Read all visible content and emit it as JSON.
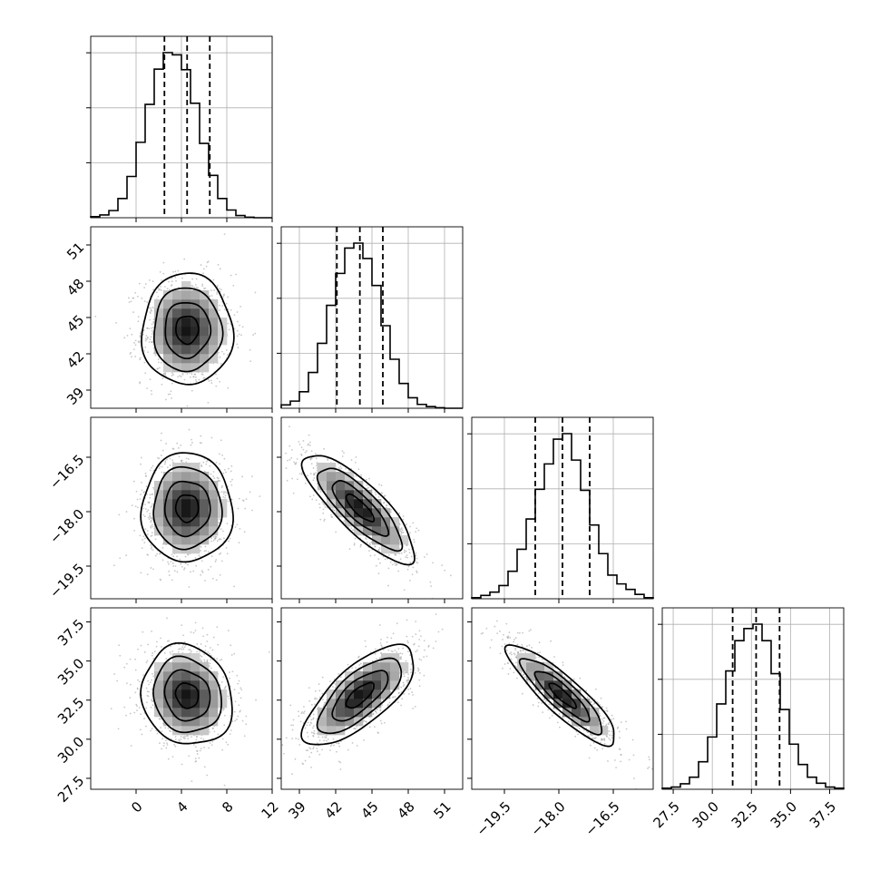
{
  "chart_data": {
    "type": "corner",
    "parameters": 4,
    "grid": true,
    "colors": {
      "line": "#000000",
      "grid": "#b0b0b0",
      "points": "#9a9a9a",
      "density_dark": "#000000",
      "density_light": "#ffffff"
    },
    "ranges": [
      [
        -4,
        12
      ],
      [
        37.5,
        52.5
      ],
      [
        -20.4,
        -15.4
      ],
      [
        26.8,
        38.4
      ]
    ],
    "ticks": [
      {
        "values": [
          0,
          4,
          8,
          12
        ],
        "labels": [
          "0",
          "4",
          "8",
          "12"
        ]
      },
      {
        "values": [
          39,
          42,
          45,
          48,
          51
        ],
        "labels": [
          "39",
          "42",
          "45",
          "48",
          "51"
        ]
      },
      {
        "values": [
          -19.5,
          -18.0,
          -16.5
        ],
        "labels": [
          "−19.5",
          "−18.0",
          "−16.5"
        ]
      },
      {
        "values": [
          27.5,
          30.0,
          32.5,
          35.0,
          37.5
        ],
        "labels": [
          "27.5",
          "30.0",
          "32.5",
          "35.0",
          "37.5"
        ]
      }
    ],
    "quantiles": [
      [
        2.5,
        4.5,
        6.5
      ],
      [
        42.1,
        44.0,
        45.9
      ],
      [
        -18.65,
        -17.9,
        -17.15
      ],
      [
        31.3,
        32.8,
        34.3
      ]
    ],
    "marginals": [
      {
        "bin_edges": [
          -4,
          -3.2,
          -2.4,
          -1.6,
          -0.8,
          0,
          0.8,
          1.6,
          2.4,
          3.2,
          4,
          4.8,
          5.6,
          6.4,
          7.2,
          8,
          8.8,
          9.6,
          10.4,
          11.2,
          12
        ],
        "counts": [
          2,
          5,
          13,
          35,
          75,
          137,
          206,
          270,
          300,
          296,
          269,
          208,
          135,
          77,
          35,
          14,
          4,
          1,
          0,
          0
        ]
      },
      {
        "bin_edges": [
          37.5,
          38.25,
          39,
          39.75,
          40.5,
          41.25,
          42,
          42.75,
          43.5,
          44.25,
          45,
          45.75,
          46.5,
          47.25,
          48,
          48.75,
          49.5,
          50.25,
          51,
          51.75,
          52.5
        ],
        "counts": [
          6,
          13,
          30,
          65,
          118,
          187,
          245,
          291,
          300,
          272,
          223,
          150,
          89,
          45,
          19,
          7,
          3,
          1,
          0,
          0
        ]
      },
      {
        "bin_edges": [
          -20.4,
          -20.15,
          -19.9,
          -19.65,
          -19.4,
          -19.15,
          -18.9,
          -18.65,
          -18.4,
          -18.15,
          -17.9,
          -17.65,
          -17.4,
          -17.15,
          -16.9,
          -16.65,
          -16.4,
          -16.15,
          -15.9,
          -15.65,
          -15.4
        ],
        "counts": [
          2,
          6,
          12,
          24,
          50,
          90,
          145,
          199,
          245,
          290,
          300,
          252,
          197,
          134,
          82,
          43,
          27,
          17,
          8,
          2
        ]
      },
      {
        "bin_edges": [
          26.8,
          27.38,
          27.96,
          28.54,
          29.12,
          29.7,
          30.28,
          30.86,
          31.44,
          32.02,
          32.6,
          33.18,
          33.76,
          34.34,
          34.92,
          35.5,
          36.08,
          36.66,
          37.24,
          37.82,
          38.4
        ],
        "counts": [
          2,
          4,
          10,
          22,
          50,
          95,
          155,
          215,
          270,
          292,
          300,
          270,
          210,
          145,
          82,
          45,
          22,
          11,
          4,
          2
        ]
      }
    ],
    "pairs": [
      {
        "x": 0,
        "y": 1,
        "mean": [
          4.5,
          44.0
        ],
        "std": [
          2.0,
          2.3
        ],
        "corr": 0.0
      },
      {
        "x": 0,
        "y": 2,
        "mean": [
          4.5,
          -17.9
        ],
        "std": [
          2.0,
          0.75
        ],
        "corr": 0.0
      },
      {
        "x": 0,
        "y": 3,
        "mean": [
          4.5,
          32.8
        ],
        "std": [
          2.0,
          1.6
        ],
        "corr": -0.12
      },
      {
        "x": 1,
        "y": 2,
        "mean": [
          44.0,
          -17.9
        ],
        "std": [
          2.3,
          0.75
        ],
        "corr": -0.82
      },
      {
        "x": 1,
        "y": 3,
        "mean": [
          44.0,
          32.8
        ],
        "std": [
          2.3,
          1.6
        ],
        "corr": 0.72
      },
      {
        "x": 2,
        "y": 3,
        "mean": [
          -17.9,
          32.8
        ],
        "std": [
          0.75,
          1.6
        ],
        "corr": -0.88
      }
    ],
    "contour_levels_sigma": [
      0.5,
      1.0,
      1.5,
      2.0
    ]
  }
}
